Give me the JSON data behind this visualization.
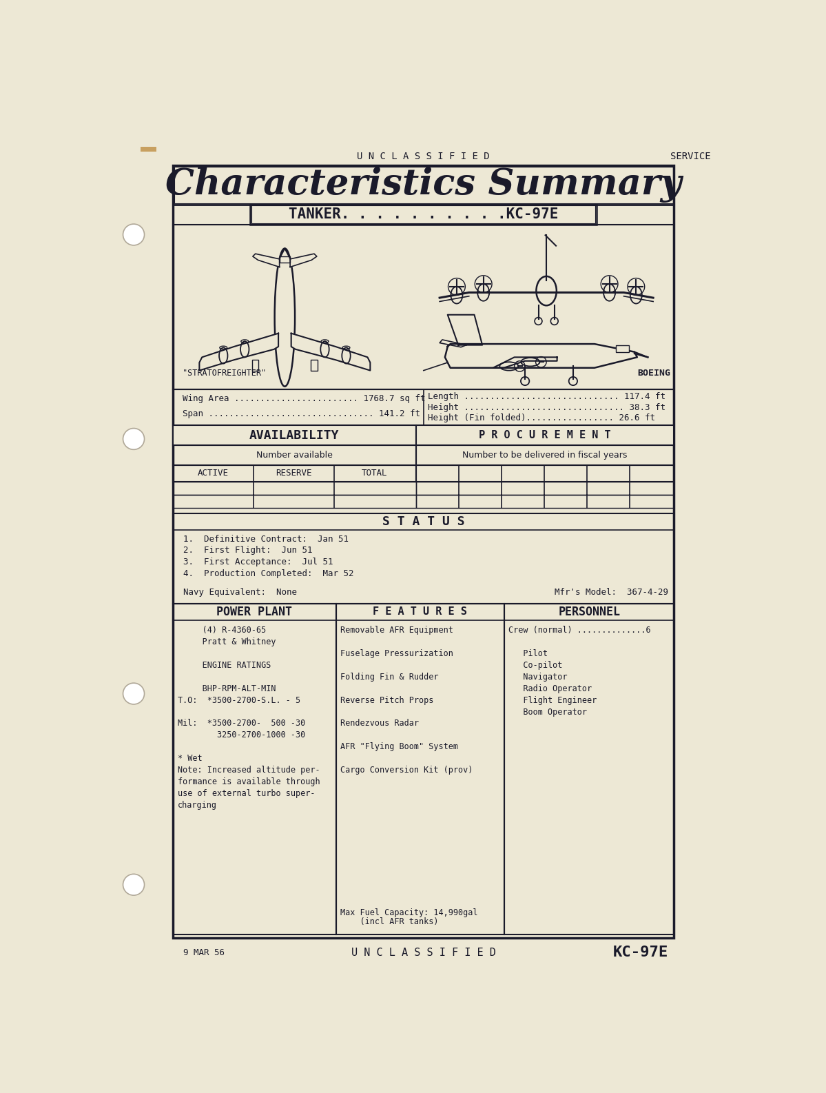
{
  "paper_color": "#ede8d5",
  "dark_color": "#1a1a2a",
  "title": "Characteristics Summary",
  "subtitle": "TANKER. . . . . . . . . .KC-97E",
  "top_label_left": "U N C L A S S I F I E D",
  "top_label_right": "SERVICE",
  "bottom_label_left": "9 MAR 56",
  "bottom_label_center": "U N C L A S S I F I E D",
  "bottom_label_right": "KC-97E",
  "stratofreighter_label": "\"STRATOFREIGHTER\"",
  "boeing_label": "BOEING",
  "wing_area_label": "Wing Area ........................ 1768.7 sq ft",
  "span_label": "Span ................................ 141.2 ft",
  "length_label": "Length .............................. 117.4 ft",
  "height_label": "Height ............................... 38.3 ft",
  "height_fin_label": "Height (Fin folded)................. 26.6 ft",
  "avail_title": "AVAILABILITY",
  "proc_title": "P R O C U R E M E N T",
  "avail_subtitle": "Number available",
  "proc_subtitle": "Number to be delivered in fiscal years",
  "avail_cols": [
    "ACTIVE",
    "RESERVE",
    "TOTAL"
  ],
  "status_title": "S T A T U S",
  "status_items": [
    "1.  Definitive Contract:  Jan 51",
    "2.  First Flight:  Jun 51",
    "3.  First Acceptance:  Jul 51",
    "4.  Production Completed:  Mar 52"
  ],
  "navy_equiv": "Navy Equivalent:  None",
  "mfr_model": "Mfr's Model:  367-4-29",
  "power_title": "POWER PLANT",
  "features_title": "F E A T U R E S",
  "personnel_title": "PERSONNEL",
  "power_lines": [
    "     (4) R-4360-65",
    "     Pratt & Whitney",
    "",
    "     ENGINE RATINGS",
    "",
    "     BHP-RPM-ALT-MIN",
    "T.O:  *3500-2700-S.L. - 5",
    "",
    "Mil:  *3500-2700-  500 -30",
    "        3250-2700-1000 -30",
    "",
    "* Wet",
    "Note: Increased altitude per-",
    "formance is available through",
    "use of external turbo super-",
    "charging"
  ],
  "features_lines": [
    "Removable AFR Equipment",
    "",
    "Fuselage Pressurization",
    "",
    "Folding Fin & Rudder",
    "",
    "Reverse Pitch Props",
    "",
    "Rendezvous Radar",
    "",
    "AFR \"Flying Boom\" System",
    "",
    "Cargo Conversion Kit (prov)"
  ],
  "features_bottom": [
    "Max Fuel Capacity: 14,990gal",
    "    (incl AFR tanks)"
  ],
  "personnel_lines": [
    "Crew (normal) ..............6",
    "",
    "   Pilot",
    "   Co-pilot",
    "   Navigator",
    "   Radio Operator",
    "   Flight Engineer",
    "   Boom Operator"
  ]
}
